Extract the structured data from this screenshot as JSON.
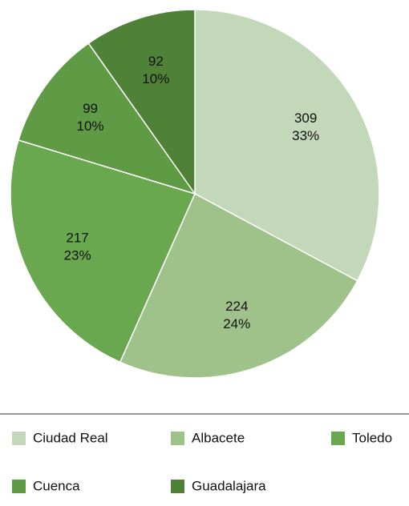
{
  "chart_data": {
    "type": "pie",
    "categories": [
      "Ciudad Real",
      "Albacete",
      "Toledo",
      "Cuenca",
      "Guadalajara"
    ],
    "values": [
      309,
      224,
      217,
      99,
      92
    ],
    "percent_labels": [
      "33%",
      "24%",
      "23%",
      "10%",
      "10%"
    ],
    "colors": [
      "#c3d7b9",
      "#9fc28a",
      "#6aa84f",
      "#5f9a45",
      "#4f8236"
    ],
    "legend": "bottom"
  }
}
